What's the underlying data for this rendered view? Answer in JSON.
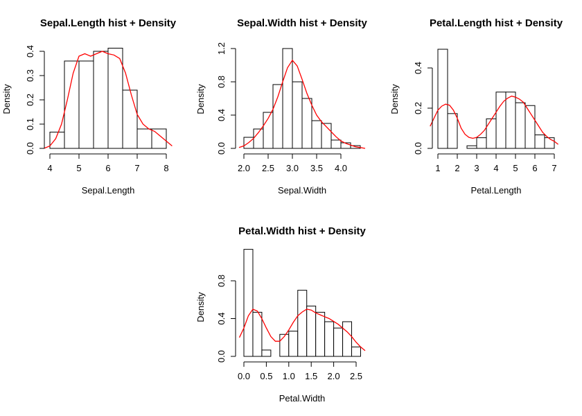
{
  "chart_data": [
    {
      "type": "histogram",
      "title": "Sepal.Length hist + Density",
      "xlabel": "Sepal.Length",
      "ylabel": "Density",
      "xlim": [
        4,
        8
      ],
      "ylim": [
        0,
        0.4
      ],
      "xticks": [
        4,
        5,
        6,
        7,
        8
      ],
      "xtick_labels": [
        "4",
        "5",
        "6",
        "7",
        "8"
      ],
      "yticks": [
        0,
        0.1,
        0.2,
        0.3,
        0.4
      ],
      "ytick_labels": [
        "0.0",
        "0.1",
        "0.2",
        "0.3",
        "0.4"
      ],
      "bin_edges": [
        4.0,
        4.5,
        5.0,
        5.5,
        6.0,
        6.5,
        7.0,
        7.5,
        8.0
      ],
      "bin_density": [
        0.067,
        0.36,
        0.36,
        0.4,
        0.413,
        0.24,
        0.08,
        0.08
      ],
      "density_x": [
        3.8,
        4.0,
        4.2,
        4.4,
        4.6,
        4.8,
        5.0,
        5.2,
        5.4,
        5.6,
        5.8,
        6.0,
        6.2,
        6.4,
        6.6,
        6.8,
        7.0,
        7.2,
        7.4,
        7.6,
        7.8,
        8.0,
        8.2
      ],
      "density_y": [
        0.0,
        0.01,
        0.04,
        0.1,
        0.2,
        0.31,
        0.38,
        0.39,
        0.38,
        0.39,
        0.4,
        0.39,
        0.385,
        0.37,
        0.31,
        0.22,
        0.14,
        0.1,
        0.08,
        0.07,
        0.05,
        0.03,
        0.01
      ],
      "density_color": "#ff0000"
    },
    {
      "type": "histogram",
      "title": "Sepal.Width hist + Density",
      "xlabel": "Sepal.Width",
      "ylabel": "Density",
      "xlim": [
        2.0,
        4.0
      ],
      "ylim": [
        0,
        1.2
      ],
      "xticks": [
        2.0,
        2.5,
        3.0,
        3.5,
        4.0
      ],
      "xtick_labels": [
        "2.0",
        "2.5",
        "3.0",
        "3.5",
        "4.0"
      ],
      "yticks": [
        0,
        0.4,
        0.8,
        1.2
      ],
      "ytick_labels": [
        "0.0",
        "0.4",
        "0.8",
        "1.2"
      ],
      "bin_edges": [
        2.0,
        2.2,
        2.4,
        2.6,
        2.8,
        3.0,
        3.2,
        3.4,
        3.6,
        3.8,
        4.0,
        4.2,
        4.4
      ],
      "bin_density": [
        0.133,
        0.233,
        0.433,
        0.767,
        1.2,
        0.8,
        0.6,
        0.333,
        0.3,
        0.1,
        0.067,
        0.033
      ],
      "density_x": [
        1.9,
        2.0,
        2.1,
        2.2,
        2.3,
        2.4,
        2.5,
        2.6,
        2.7,
        2.8,
        2.9,
        3.0,
        3.1,
        3.2,
        3.3,
        3.4,
        3.5,
        3.6,
        3.7,
        3.8,
        3.9,
        4.0,
        4.1,
        4.2,
        4.3,
        4.4,
        4.5
      ],
      "density_y": [
        0.01,
        0.03,
        0.07,
        0.12,
        0.19,
        0.27,
        0.36,
        0.47,
        0.62,
        0.8,
        0.97,
        1.06,
        0.99,
        0.83,
        0.66,
        0.52,
        0.4,
        0.32,
        0.26,
        0.2,
        0.14,
        0.09,
        0.06,
        0.04,
        0.02,
        0.01,
        0.0
      ],
      "density_color": "#ff0000"
    },
    {
      "type": "histogram",
      "title": "Petal.Length hist + Density",
      "xlabel": "Petal.Length",
      "ylabel": "Density",
      "xlim": [
        1,
        7
      ],
      "ylim": [
        0,
        0.4
      ],
      "xticks": [
        1,
        2,
        3,
        4,
        5,
        6,
        7
      ],
      "xtick_labels": [
        "1",
        "2",
        "3",
        "4",
        "5",
        "6",
        "7"
      ],
      "yticks": [
        0,
        0.2,
        0.4
      ],
      "ytick_labels": [
        "0.0",
        "0.2",
        "0.4"
      ],
      "bin_edges": [
        1.0,
        1.5,
        2.0,
        2.5,
        3.0,
        3.5,
        4.0,
        4.5,
        5.0,
        5.5,
        6.0,
        6.5,
        7.0
      ],
      "bin_density": [
        0.493,
        0.173,
        0.0,
        0.013,
        0.053,
        0.147,
        0.28,
        0.28,
        0.227,
        0.213,
        0.067,
        0.053
      ],
      "density_x": [
        0.6,
        0.8,
        1.0,
        1.2,
        1.4,
        1.6,
        1.8,
        2.0,
        2.2,
        2.4,
        2.6,
        2.8,
        3.0,
        3.2,
        3.4,
        3.6,
        3.8,
        4.0,
        4.2,
        4.4,
        4.6,
        4.8,
        5.0,
        5.2,
        5.4,
        5.6,
        5.8,
        6.0,
        6.2,
        6.4,
        6.6,
        6.8,
        7.0,
        7.2
      ],
      "density_y": [
        0.11,
        0.15,
        0.19,
        0.21,
        0.22,
        0.215,
        0.19,
        0.15,
        0.1,
        0.07,
        0.055,
        0.05,
        0.055,
        0.07,
        0.09,
        0.12,
        0.15,
        0.18,
        0.21,
        0.235,
        0.25,
        0.26,
        0.255,
        0.245,
        0.23,
        0.2,
        0.17,
        0.14,
        0.11,
        0.08,
        0.06,
        0.045,
        0.035,
        0.02
      ],
      "density_color": "#ff0000"
    },
    {
      "type": "histogram",
      "title": "Petal.Width hist + Density",
      "xlabel": "Petal.Width",
      "ylabel": "Density",
      "xlim": [
        0.0,
        2.5
      ],
      "ylim": [
        0,
        0.8
      ],
      "xticks": [
        0.0,
        0.5,
        1.0,
        1.5,
        2.0,
        2.5
      ],
      "xtick_labels": [
        "0.0",
        "0.5",
        "1.0",
        "1.5",
        "2.0",
        "2.5"
      ],
      "yticks": [
        0,
        0.4,
        0.8
      ],
      "ytick_labels": [
        "0.0",
        "0.4",
        "0.8"
      ],
      "bin_edges": [
        0.0,
        0.2,
        0.4,
        0.6,
        0.8,
        1.0,
        1.2,
        1.4,
        1.6,
        1.8,
        2.0,
        2.2,
        2.4,
        2.6
      ],
      "bin_density": [
        1.133,
        0.467,
        0.067,
        0.0,
        0.233,
        0.267,
        0.7,
        0.533,
        0.467,
        0.367,
        0.3,
        0.367,
        0.1
      ],
      "density_x": [
        -0.1,
        0.0,
        0.1,
        0.2,
        0.3,
        0.4,
        0.5,
        0.6,
        0.7,
        0.8,
        0.9,
        1.0,
        1.1,
        1.2,
        1.3,
        1.4,
        1.5,
        1.6,
        1.7,
        1.8,
        1.9,
        2.0,
        2.1,
        2.2,
        2.3,
        2.4,
        2.5,
        2.6,
        2.7
      ],
      "density_y": [
        0.2,
        0.3,
        0.43,
        0.5,
        0.48,
        0.4,
        0.3,
        0.21,
        0.16,
        0.16,
        0.21,
        0.28,
        0.36,
        0.43,
        0.47,
        0.5,
        0.49,
        0.46,
        0.44,
        0.42,
        0.4,
        0.37,
        0.34,
        0.3,
        0.26,
        0.21,
        0.15,
        0.1,
        0.06
      ],
      "density_color": "#ff0000"
    }
  ]
}
